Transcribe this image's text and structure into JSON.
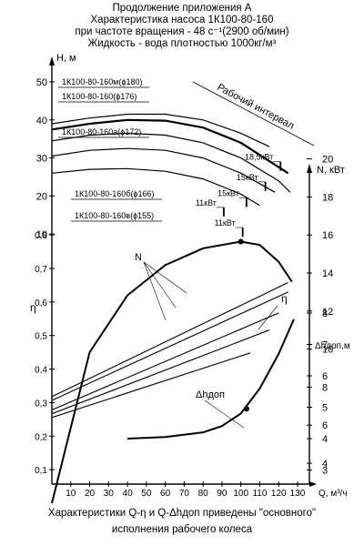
{
  "header": {
    "line1": "Продолжение приложения А",
    "line2": "Характеристика насоса 1К100-80-160",
    "line3": "при частоте вращения - 48 с⁻¹(2900 об/мин)",
    "line4": "Жидкость - вода плотностью 1000кг/м³"
  },
  "caption": {
    "line1": "Характеристики Q-η и Q-Δhдоп приведены  \"основного\"",
    "line2": "исполнения рабочего колеса"
  },
  "chart_data": {
    "type": "line",
    "x_axis": {
      "label": "Q, м³/ч",
      "ticks": [
        10,
        20,
        30,
        40,
        50,
        60,
        70,
        80,
        90,
        100,
        110,
        120,
        130
      ],
      "range": [
        0,
        130
      ]
    },
    "axes": {
      "H": {
        "label": "H, м",
        "ticks": [
          10,
          20,
          30,
          40,
          50
        ],
        "range": [
          0,
          50
        ]
      },
      "N": {
        "label": "N, кВт",
        "ticks": [
          4,
          6,
          8,
          10,
          12,
          14,
          16,
          18,
          20
        ],
        "range": [
          4,
          20
        ]
      },
      "eta": {
        "label": "η",
        "ticks": [
          0.1,
          0.2,
          0.3,
          0.4,
          0.5,
          0.6,
          0.7,
          0.8
        ],
        "range": [
          0,
          0.9
        ]
      },
      "dh": {
        "label": "Δhдоп,м",
        "ticks": [
          3,
          4,
          5,
          6,
          7,
          8
        ],
        "range": [
          2,
          9
        ]
      }
    },
    "work_interval_label": "Рабочий интервал",
    "head_curves": [
      {
        "name": "1К100-80-160м(ϕ180)",
        "x": [
          0,
          20,
          40,
          60,
          80,
          100,
          115
        ],
        "y": [
          39.0,
          40.5,
          41.5,
          41.5,
          40.0,
          36.5,
          33.0
        ]
      },
      {
        "name": "1К100-80-160(ϕ176)",
        "x": [
          0,
          20,
          40,
          60,
          80,
          100,
          125
        ],
        "y": [
          37.5,
          39.0,
          40.0,
          39.8,
          38.0,
          34.0,
          26.0
        ]
      },
      {
        "name": "1К100-80-160а(ϕ172)",
        "x": [
          0,
          20,
          40,
          60,
          80,
          100,
          120,
          126
        ],
        "y": [
          34.5,
          36.0,
          36.5,
          36.0,
          34.0,
          30.0,
          24.0,
          21.0
        ]
      },
      {
        "name": "1К100-80-160б(ϕ166)",
        "x": [
          0,
          20,
          40,
          60,
          80,
          100,
          118
        ],
        "y": [
          30.5,
          32.0,
          32.5,
          32.0,
          30.0,
          26.0,
          21.0
        ]
      },
      {
        "name": "1К100-80-160в(ϕ155)",
        "x": [
          0,
          20,
          40,
          60,
          80,
          100,
          110
        ],
        "y": [
          26.0,
          27.0,
          27.2,
          26.5,
          24.5,
          20.5,
          17.5
        ]
      }
    ],
    "power_lines": {
      "label": "N",
      "series": [
        {
          "x": [
            0,
            125
          ],
          "y": [
            7.5,
            13.5
          ]
        },
        {
          "x": [
            0,
            125
          ],
          "y": [
            7.3,
            13.0
          ]
        },
        {
          "x": [
            0,
            120
          ],
          "y": [
            6.8,
            11.9
          ]
        },
        {
          "x": [
            0,
            115
          ],
          "y": [
            6.6,
            11.0
          ]
        },
        {
          "x": [
            0,
            105
          ],
          "y": [
            6.4,
            9.8
          ]
        }
      ]
    },
    "efficiency": {
      "label": "η",
      "x": [
        0,
        20,
        40,
        60,
        80,
        100,
        110,
        120,
        127
      ],
      "y": [
        0.0,
        0.45,
        0.62,
        0.71,
        0.76,
        0.78,
        0.77,
        0.72,
        0.66
      ],
      "marker": [
        100,
        0.78
      ]
    },
    "npsh": {
      "label": "Δhдоп",
      "x": [
        40,
        60,
        80,
        90,
        100,
        110,
        120,
        128
      ],
      "y": [
        4.0,
        4.05,
        4.2,
        4.4,
        4.8,
        5.6,
        6.7,
        7.8
      ],
      "marker": [
        103,
        4.95
      ]
    },
    "annotations": [
      {
        "text": "18,5кВт",
        "q": 120,
        "h": 29.5
      },
      {
        "text": "15кВт",
        "q": 112,
        "h": 24.2
      },
      {
        "text": "15кВт",
        "q": 102,
        "h": 20.0
      },
      {
        "text": "11кВт",
        "q": 90,
        "h": 17.5
      },
      {
        "text": "11кВт",
        "q": 100,
        "h": 12.2
      }
    ]
  }
}
